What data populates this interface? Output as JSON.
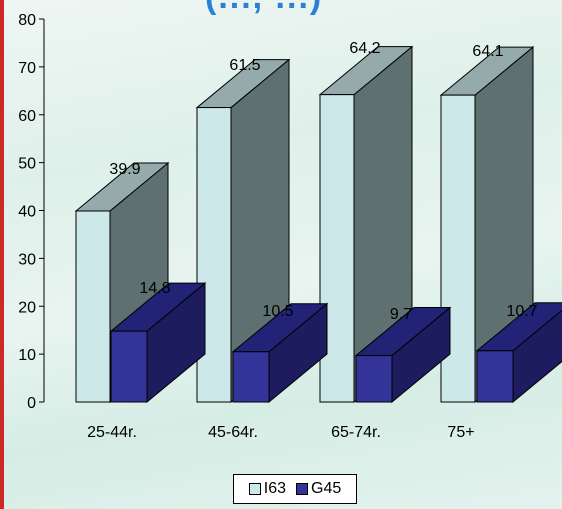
{
  "title_fragment": "(..., ...)",
  "chart_data": {
    "type": "bar",
    "categories": [
      "25-44r.",
      "45-64r.",
      "65-74r.",
      "75+"
    ],
    "series": [
      {
        "name": "I63",
        "values": [
          39.9,
          61.5,
          64.2,
          64.1
        ],
        "color": "#cce8e8"
      },
      {
        "name": "G45",
        "values": [
          14.8,
          10.5,
          9.7,
          10.7
        ],
        "color": "#333399"
      }
    ],
    "ylim": [
      0,
      80
    ],
    "yticks": [
      "0",
      "10",
      "20",
      "30",
      "40",
      "50",
      "60",
      "70",
      "80"
    ],
    "value_labels": {
      "I63": [
        "39.9",
        "61.5",
        "64.2",
        "64.1"
      ],
      "G45": [
        "14.8",
        "10.5",
        "9.7",
        "10.7"
      ]
    },
    "legend": [
      "I63",
      "G45"
    ],
    "legend_position": "bottom-center",
    "style": "3d"
  }
}
